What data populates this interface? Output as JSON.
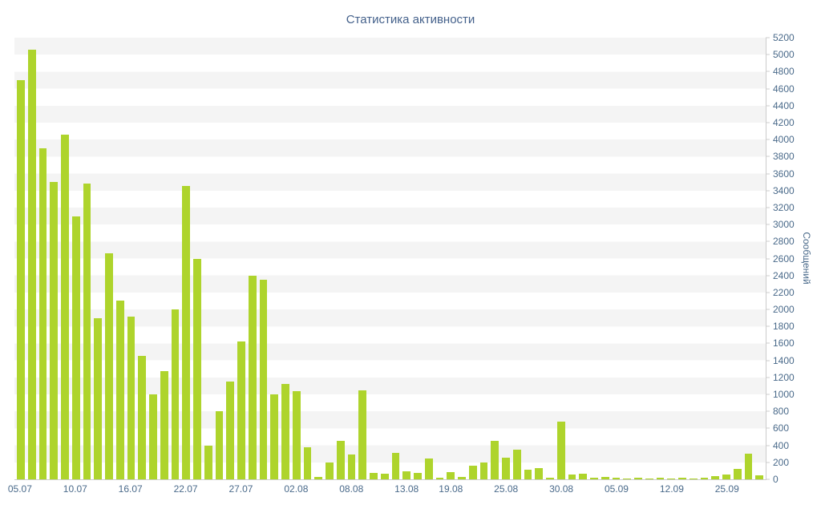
{
  "chart_data": {
    "type": "bar",
    "title": "Статистика активности",
    "xlabel": "",
    "ylabel": "Сообщений",
    "ylim": [
      0,
      5200
    ],
    "y_tick_step": 200,
    "grid": "striped-bands",
    "legend": "none",
    "bar_color": "#aed42c",
    "stripe_colors": [
      "#ffffff",
      "#f4f4f4"
    ],
    "axis_text_color": "#4a6a8a",
    "y_ticks": [
      0,
      200,
      400,
      600,
      800,
      1000,
      1200,
      1400,
      1600,
      1800,
      2000,
      2200,
      2400,
      2600,
      2800,
      3000,
      3200,
      3400,
      3600,
      3800,
      4000,
      4200,
      4400,
      4600,
      4800,
      5000,
      5200
    ],
    "values": [
      4700,
      5060,
      3900,
      3500,
      4060,
      3100,
      3480,
      1900,
      2660,
      2100,
      1920,
      1450,
      1000,
      1270,
      2000,
      3450,
      2600,
      400,
      800,
      1150,
      1620,
      2400,
      2350,
      1000,
      1120,
      1040,
      380,
      30,
      200,
      450,
      290,
      1050,
      75,
      70,
      310,
      95,
      75,
      250,
      20,
      85,
      30,
      160,
      200,
      450,
      255,
      350,
      110,
      130,
      20,
      680,
      55,
      65,
      20,
      30,
      15,
      10,
      15,
      10,
      20,
      10,
      15,
      10,
      20,
      35,
      60,
      125,
      300,
      50
    ],
    "x_tick_labels": [
      {
        "text": "05.07",
        "index": 0
      },
      {
        "text": "10.07",
        "index": 5
      },
      {
        "text": "16.07",
        "index": 10
      },
      {
        "text": "22.07",
        "index": 15
      },
      {
        "text": "27.07",
        "index": 20
      },
      {
        "text": "02.08",
        "index": 25
      },
      {
        "text": "08.08",
        "index": 30
      },
      {
        "text": "13.08",
        "index": 35
      },
      {
        "text": "19.08",
        "index": 39
      },
      {
        "text": "25.08",
        "index": 44
      },
      {
        "text": "30.08",
        "index": 49
      },
      {
        "text": "05.09",
        "index": 54
      },
      {
        "text": "12.09",
        "index": 59
      },
      {
        "text": "25.09",
        "index": 64
      }
    ]
  }
}
